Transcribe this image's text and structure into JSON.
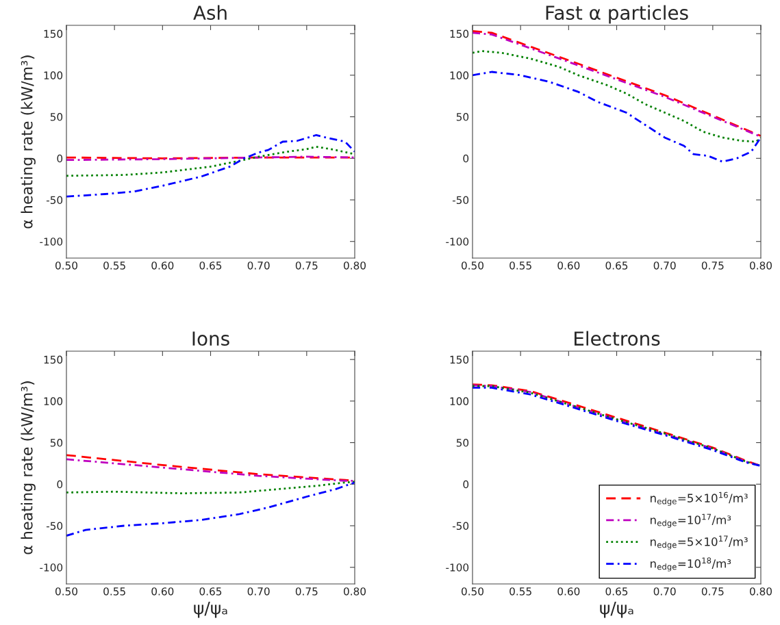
{
  "chart_data": [
    {
      "type": "line",
      "title": "Ash",
      "ylabel": "α heating rate (kW/m³)",
      "xlim": [
        0.5,
        0.8
      ],
      "ylim": [
        -120,
        160
      ],
      "xticks": [
        {
          "value": 0.5,
          "label": "0.50"
        },
        {
          "value": 0.55,
          "label": "0.55"
        },
        {
          "value": 0.6,
          "label": "0.60"
        },
        {
          "value": 0.65,
          "label": "0.65"
        },
        {
          "value": 0.7,
          "label": "0.70"
        },
        {
          "value": 0.75,
          "label": "0.75"
        },
        {
          "value": 0.8,
          "label": "0.80"
        }
      ],
      "yticks": [
        -100,
        -50,
        0,
        50,
        100,
        150
      ],
      "grid": false,
      "legend": false,
      "series": [
        {
          "color": "#ff0000",
          "line_style": "dashed",
          "x": [
            0.5,
            0.6,
            0.7,
            0.8
          ],
          "values": [
            1,
            0,
            1,
            1
          ]
        },
        {
          "color": "#bf00bf",
          "line_style": "dashdot",
          "x": [
            0.5,
            0.6,
            0.7,
            0.75,
            0.8
          ],
          "values": [
            -2,
            -1,
            1,
            2,
            1
          ]
        },
        {
          "color": "#008000",
          "line_style": "dotted",
          "x": [
            0.5,
            0.56,
            0.6,
            0.65,
            0.68,
            0.7,
            0.73,
            0.75,
            0.76,
            0.78,
            0.8
          ],
          "values": [
            -21,
            -20,
            -17,
            -10,
            -3,
            2,
            8,
            11,
            14,
            10,
            5
          ]
        },
        {
          "color": "#0000ff",
          "line_style": "dashdot",
          "x": [
            0.5,
            0.54,
            0.57,
            0.6,
            0.64,
            0.67,
            0.685,
            0.7,
            0.71,
            0.725,
            0.74,
            0.76,
            0.77,
            0.79,
            0.8
          ],
          "values": [
            -46,
            -43,
            -40,
            -33,
            -22,
            -10,
            0,
            7,
            10,
            20,
            21,
            28,
            25,
            20,
            8
          ]
        }
      ]
    },
    {
      "type": "line",
      "title": "Fast α particles",
      "xlim": [
        0.5,
        0.8
      ],
      "ylim": [
        -120,
        160
      ],
      "xticks": [
        {
          "value": 0.5,
          "label": "0.50"
        },
        {
          "value": 0.55,
          "label": "0.55"
        },
        {
          "value": 0.6,
          "label": "0.60"
        },
        {
          "value": 0.65,
          "label": "0.65"
        },
        {
          "value": 0.7,
          "label": "0.70"
        },
        {
          "value": 0.75,
          "label": "0.75"
        },
        {
          "value": 0.8,
          "label": "0.80"
        }
      ],
      "yticks": [
        -100,
        -50,
        0,
        50,
        100,
        150
      ],
      "grid": false,
      "legend": false,
      "series": [
        {
          "color": "#ff0000",
          "line_style": "dashed",
          "x": [
            0.5,
            0.52,
            0.6,
            0.7,
            0.8
          ],
          "values": [
            153,
            151,
            118,
            76,
            27
          ]
        },
        {
          "color": "#bf00bf",
          "line_style": "dashdot",
          "x": [
            0.5,
            0.52,
            0.6,
            0.7,
            0.8
          ],
          "values": [
            151,
            149,
            116,
            74,
            26
          ]
        },
        {
          "color": "#008000",
          "line_style": "dotted",
          "x": [
            0.5,
            0.51,
            0.53,
            0.56,
            0.59,
            0.61,
            0.64,
            0.66,
            0.68,
            0.7,
            0.72,
            0.74,
            0.76,
            0.78,
            0.795,
            0.8
          ],
          "values": [
            127,
            129,
            127,
            120,
            110,
            100,
            88,
            78,
            65,
            55,
            45,
            32,
            25,
            21,
            20,
            25
          ]
        },
        {
          "color": "#0000ff",
          "line_style": "dashdot",
          "x": [
            0.5,
            0.52,
            0.55,
            0.58,
            0.61,
            0.63,
            0.66,
            0.68,
            0.7,
            0.72,
            0.73,
            0.745,
            0.76,
            0.775,
            0.79,
            0.8
          ],
          "values": [
            100,
            104,
            100,
            92,
            80,
            68,
            55,
            40,
            25,
            15,
            5,
            3,
            -4,
            0,
            8,
            25
          ]
        }
      ]
    },
    {
      "type": "line",
      "title": "Ions",
      "xlabel": "ψ/ψₐ",
      "ylabel": "α heating rate (kW/m³)",
      "xlim": [
        0.5,
        0.8
      ],
      "ylim": [
        -120,
        160
      ],
      "xticks": [
        {
          "value": 0.5,
          "label": "0.50"
        },
        {
          "value": 0.55,
          "label": "0.55"
        },
        {
          "value": 0.6,
          "label": "0.60"
        },
        {
          "value": 0.65,
          "label": "0.65"
        },
        {
          "value": 0.7,
          "label": "0.70"
        },
        {
          "value": 0.75,
          "label": "0.75"
        },
        {
          "value": 0.8,
          "label": "0.80"
        }
      ],
      "yticks": [
        -100,
        -50,
        0,
        50,
        100,
        150
      ],
      "grid": false,
      "legend": false,
      "series": [
        {
          "color": "#ff0000",
          "line_style": "dashed",
          "x": [
            0.5,
            0.6,
            0.7,
            0.79,
            0.8
          ],
          "values": [
            35,
            23,
            12,
            5,
            4
          ]
        },
        {
          "color": "#bf00bf",
          "line_style": "dashdot",
          "x": [
            0.5,
            0.6,
            0.7,
            0.79,
            0.8
          ],
          "values": [
            30,
            20,
            10,
            4,
            4
          ]
        },
        {
          "color": "#008000",
          "line_style": "dotted",
          "x": [
            0.5,
            0.55,
            0.62,
            0.68,
            0.72,
            0.76,
            0.79,
            0.8
          ],
          "values": [
            -10,
            -9,
            -11,
            -10,
            -6,
            -2,
            2,
            3
          ]
        },
        {
          "color": "#0000ff",
          "line_style": "dashdot",
          "x": [
            0.5,
            0.52,
            0.56,
            0.6,
            0.64,
            0.68,
            0.71,
            0.75,
            0.78,
            0.8
          ],
          "values": [
            -62,
            -55,
            -50,
            -47,
            -43,
            -36,
            -28,
            -15,
            -6,
            2
          ]
        }
      ]
    },
    {
      "type": "line",
      "title": "Electrons",
      "xlabel": "ψ/ψₐ",
      "xlim": [
        0.5,
        0.8
      ],
      "ylim": [
        -120,
        160
      ],
      "xticks": [
        {
          "value": 0.5,
          "label": "0.50"
        },
        {
          "value": 0.55,
          "label": "0.55"
        },
        {
          "value": 0.6,
          "label": "0.60"
        },
        {
          "value": 0.65,
          "label": "0.65"
        },
        {
          "value": 0.7,
          "label": "0.70"
        },
        {
          "value": 0.75,
          "label": "0.75"
        },
        {
          "value": 0.8,
          "label": "0.80"
        }
      ],
      "yticks": [
        -100,
        -50,
        0,
        50,
        100,
        150
      ],
      "grid": false,
      "legend": "bottom right",
      "series": [
        {
          "name": "n$_{edge}$=5×10$^{16}$/m³",
          "color": "#ff0000",
          "line_style": "dashed",
          "x": [
            0.5,
            0.52,
            0.56,
            0.6,
            0.65,
            0.7,
            0.75,
            0.785,
            0.8
          ],
          "values": [
            120,
            119,
            112,
            98,
            80,
            62,
            44,
            28,
            22
          ]
        },
        {
          "name": "n$_{edge}$=10$^{17}$/m³",
          "color": "#bf00bf",
          "line_style": "dashdot",
          "x": [
            0.5,
            0.52,
            0.56,
            0.6,
            0.65,
            0.7,
            0.75,
            0.785,
            0.8
          ],
          "values": [
            119,
            118,
            111,
            96,
            78,
            60,
            43,
            27,
            22
          ]
        },
        {
          "name": "n$_{edge}$=5×10$^{17}$/m³",
          "color": "#008000",
          "line_style": "dotted",
          "x": [
            0.5,
            0.52,
            0.56,
            0.6,
            0.65,
            0.7,
            0.75,
            0.785,
            0.8
          ],
          "values": [
            118,
            118,
            110,
            96,
            78,
            61,
            43,
            27,
            22
          ]
        },
        {
          "name": "n$_{edge}$=10$^{18}$/m³",
          "color": "#0000ff",
          "line_style": "dashdot",
          "x": [
            0.5,
            0.52,
            0.56,
            0.6,
            0.65,
            0.7,
            0.75,
            0.785,
            0.8
          ],
          "values": [
            116,
            116,
            108,
            94,
            76,
            59,
            41,
            26,
            22
          ]
        }
      ]
    }
  ]
}
